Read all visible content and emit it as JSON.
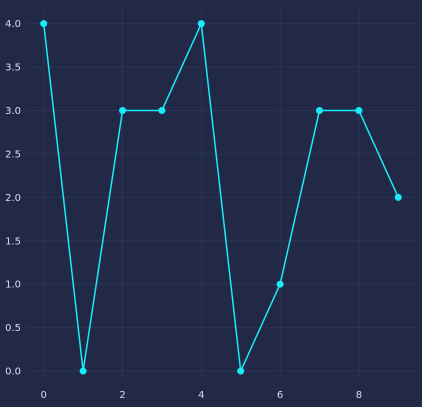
{
  "chart_data": {
    "type": "line",
    "title": "",
    "xlabel": "",
    "ylabel": "",
    "x": [
      0,
      1,
      2,
      3,
      4,
      5,
      6,
      7,
      8,
      9
    ],
    "series": [
      {
        "values": [
          4,
          0,
          3,
          3,
          4,
          0,
          1,
          3,
          3,
          2
        ]
      }
    ],
    "xlim": [
      -0.45,
      9.45
    ],
    "ylim": [
      -0.08,
      4.18
    ],
    "xticks": [
      0,
      2,
      4,
      6,
      8
    ],
    "xtick_labels": [
      "0",
      "2",
      "4",
      "6",
      "8"
    ],
    "yticks": [
      0,
      0.5,
      1,
      1.5,
      2,
      2.5,
      3,
      3.5,
      4
    ],
    "ytick_labels": [
      "0.0",
      "0.5",
      "1.0",
      "1.5",
      "2.0",
      "2.5",
      "3.0",
      "3.5",
      "4.0"
    ],
    "grid": true,
    "legend": false
  },
  "colors": {
    "background": "#212946",
    "grid": "#2A3459",
    "line": "#18EBF9",
    "tick_text": "#D9DDEA"
  }
}
